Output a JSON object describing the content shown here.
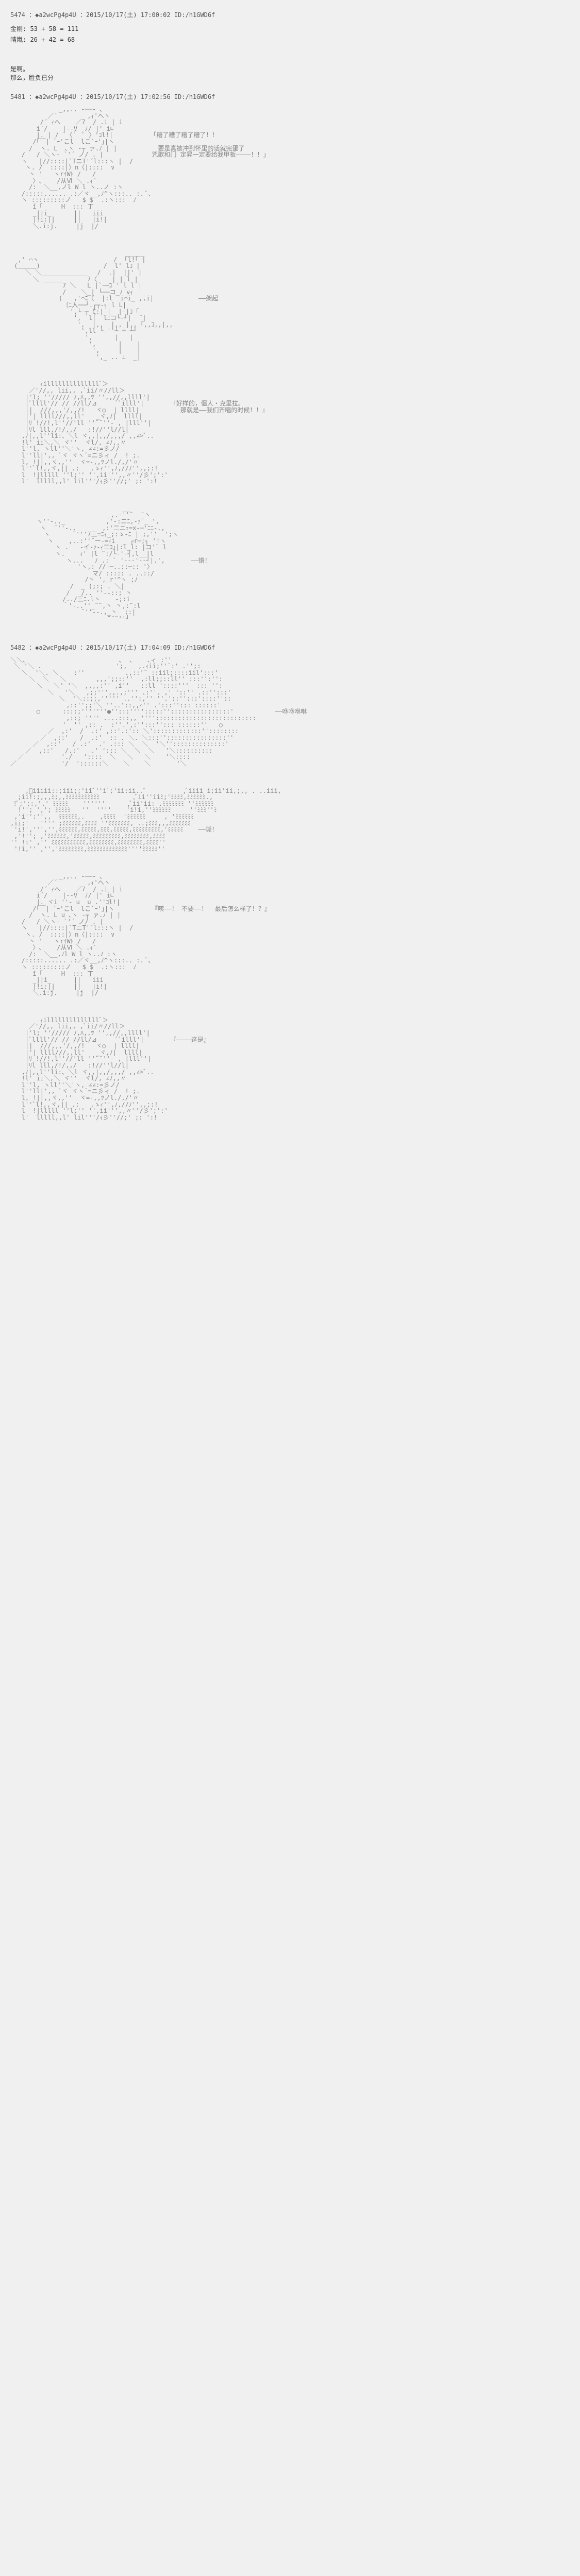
{
  "posts": [
    {
      "num": "5474",
      "trip": "◆a2wcPg4p4U",
      "date": "2015/10/17(土) 17:00:02",
      "id": "/h1GWD6f",
      "lines": [
        "金剛: 53 + 58  =  111",
        "",
        "晴嵐: 26 + 42  =  68"
      ]
    },
    {
      "num": "5481",
      "trip": "◆a2wcPg4p4U",
      "date": "2015/10/17(土) 17:02:56",
      "id": "/h1GWD6f",
      "leadin": [
        "是啊。",
        "那么，胜负已分"
      ],
      "dialogue1": "「糟了糟了糟了糟了！！",
      "dialogue2": "  要是真被冲到怀里的话就完蛋了",
      "dialogue3": "  咒歌和门 定昇一定要给我甲板――――！！」",
      "caption1": "――架起",
      "dialogue4": "『好样的，僵人・克里拉。",
      "dialogue5": "  那就是――我们齐唱的时候！！』",
      "caption2": "――锵！"
    },
    {
      "num": "5482",
      "trip": "◆a2wcPg4p4U",
      "date": "2015/10/17(土) 17:04:09",
      "id": "/h1GWD6f",
      "caption3": "――咻咻咻咻",
      "caption4": "――嘶！",
      "dialogue6": "『咦――！ 不要――！  最后怎么样了！？』",
      "dialogue7": "『――――这是』"
    }
  ]
}
